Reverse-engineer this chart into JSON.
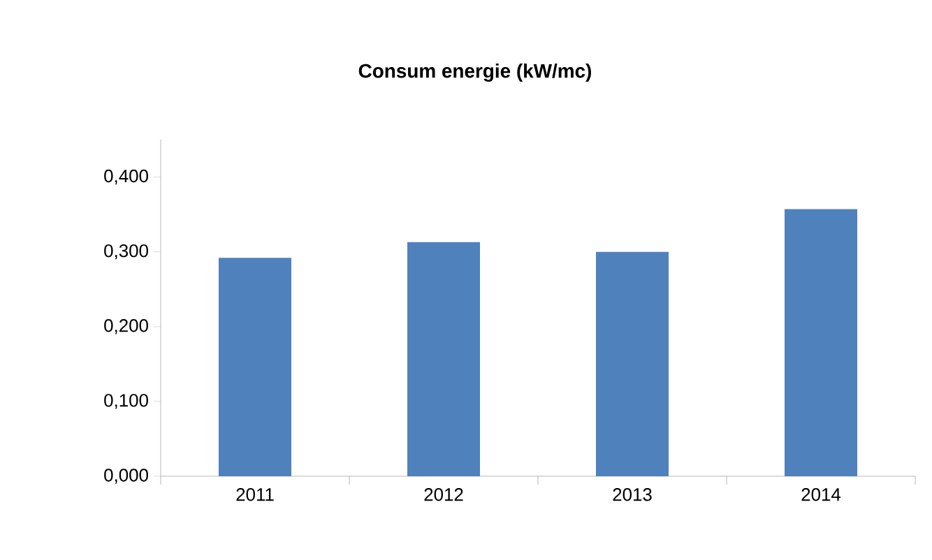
{
  "chart_data": {
    "type": "bar",
    "title": "Consum energie (kW/mc)",
    "categories": [
      "2011",
      "2012",
      "2013",
      "2014"
    ],
    "values": [
      0.292,
      0.313,
      0.3,
      0.357
    ],
    "color": "#4f81bd",
    "ylim": [
      0,
      0.45
    ],
    "yticks": [
      {
        "value": 0,
        "label": "0,000"
      },
      {
        "value": 0.1,
        "label": "0,100"
      },
      {
        "value": 0.2,
        "label": "0,200"
      },
      {
        "value": 0.3,
        "label": "0,300"
      },
      {
        "value": 0.4,
        "label": "0,400"
      }
    ],
    "grid": false
  }
}
